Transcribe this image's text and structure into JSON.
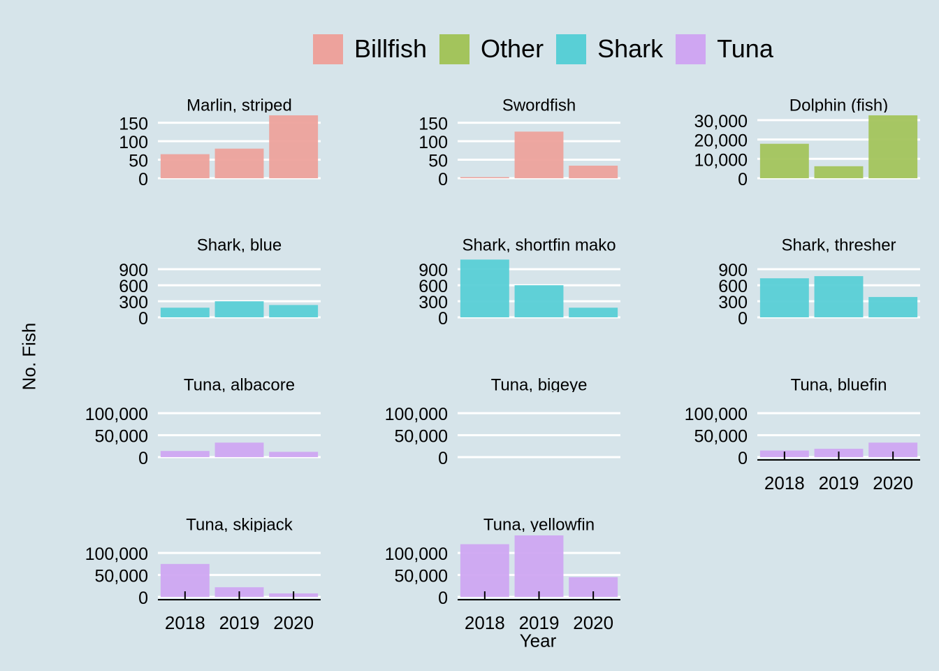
{
  "legend": {
    "items": [
      {
        "label": "Billfish",
        "color": "#eda29c"
      },
      {
        "label": "Other",
        "color": "#a3c45c"
      },
      {
        "label": "Shark",
        "color": "#59cfd6"
      },
      {
        "label": "Tuna",
        "color": "#cfa6f2"
      }
    ]
  },
  "axes": {
    "ylabel": "No. Fish",
    "xlabel": "Year"
  },
  "chart_data": {
    "type": "bar",
    "categories": [
      "2018",
      "2019",
      "2020"
    ],
    "xlabel": "Year",
    "ylabel": "No. Fish",
    "grid": true,
    "legend_position": "top",
    "facets": [
      {
        "title": "Marlin, striped",
        "group": "Billfish",
        "values": [
          65,
          80,
          170
        ],
        "ylim": [
          0,
          170
        ],
        "yticks": [
          0,
          50,
          100,
          150
        ],
        "ytick_labels": [
          "0",
          "50",
          "100",
          "150"
        ],
        "show_x": false
      },
      {
        "title": "Swordfish",
        "group": "Billfish",
        "values": [
          3,
          126,
          34
        ],
        "ylim": [
          0,
          170
        ],
        "yticks": [
          0,
          50,
          100,
          150
        ],
        "ytick_labels": [
          "0",
          "50",
          "100",
          "150"
        ],
        "show_x": false
      },
      {
        "title": "Dolphin (fish)",
        "group": "Other",
        "values": [
          17800,
          6200,
          32500
        ],
        "ylim": [
          0,
          32500
        ],
        "yticks": [
          0,
          10000,
          20000,
          30000
        ],
        "ytick_labels": [
          "0",
          "10,000",
          "20,000",
          "30,000"
        ],
        "show_x": false
      },
      {
        "title": "Shark, blue",
        "group": "Shark",
        "values": [
          180,
          300,
          230
        ],
        "ylim": [
          0,
          1150
        ],
        "yticks": [
          0,
          300,
          600,
          900
        ],
        "ytick_labels": [
          "0",
          "300",
          "600",
          "900"
        ],
        "show_x": false
      },
      {
        "title": "Shark, shortfin mako",
        "group": "Shark",
        "values": [
          1080,
          600,
          180
        ],
        "ylim": [
          0,
          1150
        ],
        "yticks": [
          0,
          300,
          600,
          900
        ],
        "ytick_labels": [
          "0",
          "300",
          "600",
          "900"
        ],
        "show_x": false
      },
      {
        "title": "Shark, thresher",
        "group": "Shark",
        "values": [
          730,
          770,
          380
        ],
        "ylim": [
          0,
          1150
        ],
        "yticks": [
          0,
          300,
          600,
          900
        ],
        "ytick_labels": [
          "0",
          "300",
          "600",
          "900"
        ],
        "show_x": false
      },
      {
        "title": "Tuna, albacore",
        "group": "Tuna",
        "values": [
          14000,
          33000,
          12000
        ],
        "ylim": [
          0,
          140000
        ],
        "yticks": [
          0,
          50000,
          100000
        ],
        "ytick_labels": [
          "0",
          "50,000",
          "100,000"
        ],
        "show_x": false
      },
      {
        "title": "Tuna, bigeye",
        "group": "Tuna",
        "values": [
          0,
          0,
          0
        ],
        "ylim": [
          0,
          140000
        ],
        "yticks": [
          0,
          50000,
          100000
        ],
        "ytick_labels": [
          "0",
          "50,000",
          "100,000"
        ],
        "show_x": false
      },
      {
        "title": "Tuna, bluefin",
        "group": "Tuna",
        "values": [
          15000,
          19000,
          33000
        ],
        "ylim": [
          0,
          140000
        ],
        "yticks": [
          0,
          50000,
          100000
        ],
        "ytick_labels": [
          "0",
          "50,000",
          "100,000"
        ],
        "show_x": true
      },
      {
        "title": "Tuna, skipjack",
        "group": "Tuna",
        "values": [
          75000,
          22000,
          8000
        ],
        "ylim": [
          0,
          140000
        ],
        "yticks": [
          0,
          50000,
          100000
        ],
        "ytick_labels": [
          "0",
          "50,000",
          "100,000"
        ],
        "show_x": true
      },
      {
        "title": "Tuna, yellowfin",
        "group": "Tuna",
        "values": [
          120000,
          140000,
          45000
        ],
        "ylim": [
          0,
          140000
        ],
        "yticks": [
          0,
          50000,
          100000
        ],
        "ytick_labels": [
          "0",
          "50,000",
          "100,000"
        ],
        "show_x": true
      }
    ]
  }
}
